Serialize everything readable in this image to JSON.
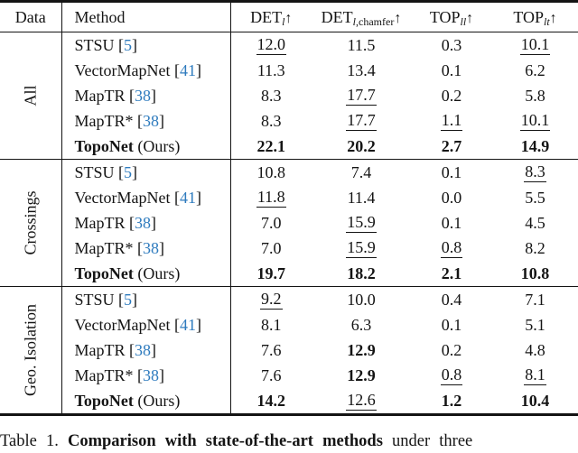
{
  "colors": {
    "text": "#141414",
    "citation_blue": "#2e7bbe",
    "background": "#ffffff"
  },
  "table": {
    "ref_open": "[",
    "ref_close": "]",
    "columns": [
      {
        "key": "data",
        "label": "Data"
      },
      {
        "key": "method",
        "label": "Method"
      },
      {
        "key": "det_l",
        "base": "DET",
        "sub_italic": "l",
        "sub_roman": "",
        "arrow": "↑"
      },
      {
        "key": "det_l_chamfer",
        "base": "DET",
        "sub_italic": "l",
        "sub_roman": ",chamfer",
        "arrow": "↑"
      },
      {
        "key": "top_ll",
        "base": "TOP",
        "sub_italic": "ll",
        "sub_roman": "",
        "arrow": "↑"
      },
      {
        "key": "top_lt",
        "base": "TOP",
        "sub_italic": "lt",
        "sub_roman": "",
        "arrow": "↑"
      }
    ],
    "groups": [
      {
        "label": "All",
        "rows": [
          {
            "method": "STSU",
            "ref": "5",
            "method_bold": false,
            "note": "",
            "cells": [
              {
                "v": "12.0",
                "s": "u"
              },
              {
                "v": "11.5",
                "s": ""
              },
              {
                "v": "0.3",
                "s": ""
              },
              {
                "v": "10.1",
                "s": "u"
              }
            ]
          },
          {
            "method": "VectorMapNet",
            "ref": "41",
            "method_bold": false,
            "note": "",
            "cells": [
              {
                "v": "11.3",
                "s": ""
              },
              {
                "v": "13.4",
                "s": ""
              },
              {
                "v": "0.1",
                "s": ""
              },
              {
                "v": "6.2",
                "s": ""
              }
            ]
          },
          {
            "method": "MapTR",
            "ref": "38",
            "method_bold": false,
            "note": "",
            "cells": [
              {
                "v": "8.3",
                "s": ""
              },
              {
                "v": "17.7",
                "s": "u"
              },
              {
                "v": "0.2",
                "s": ""
              },
              {
                "v": "5.8",
                "s": ""
              }
            ]
          },
          {
            "method": "MapTR*",
            "ref": "38",
            "method_bold": false,
            "note": "",
            "cells": [
              {
                "v": "8.3",
                "s": ""
              },
              {
                "v": "17.7",
                "s": "u"
              },
              {
                "v": "1.1",
                "s": "u"
              },
              {
                "v": "10.1",
                "s": "u"
              }
            ]
          },
          {
            "method": "TopoNet",
            "ref": "",
            "method_bold": true,
            "note": " (Ours)",
            "cells": [
              {
                "v": "22.1",
                "s": "b"
              },
              {
                "v": "20.2",
                "s": "b"
              },
              {
                "v": "2.7",
                "s": "b"
              },
              {
                "v": "14.9",
                "s": "b"
              }
            ]
          }
        ]
      },
      {
        "label": "Crossings",
        "rows": [
          {
            "method": "STSU",
            "ref": "5",
            "method_bold": false,
            "note": "",
            "cells": [
              {
                "v": "10.8",
                "s": ""
              },
              {
                "v": "7.4",
                "s": ""
              },
              {
                "v": "0.1",
                "s": ""
              },
              {
                "v": "8.3",
                "s": "u"
              }
            ]
          },
          {
            "method": "VectorMapNet",
            "ref": "41",
            "method_bold": false,
            "note": "",
            "cells": [
              {
                "v": "11.8",
                "s": "u"
              },
              {
                "v": "11.4",
                "s": ""
              },
              {
                "v": "0.0",
                "s": ""
              },
              {
                "v": "5.5",
                "s": ""
              }
            ]
          },
          {
            "method": "MapTR",
            "ref": "38",
            "method_bold": false,
            "note": "",
            "cells": [
              {
                "v": "7.0",
                "s": ""
              },
              {
                "v": "15.9",
                "s": "u"
              },
              {
                "v": "0.1",
                "s": ""
              },
              {
                "v": "4.5",
                "s": ""
              }
            ]
          },
          {
            "method": "MapTR*",
            "ref": "38",
            "method_bold": false,
            "note": "",
            "cells": [
              {
                "v": "7.0",
                "s": ""
              },
              {
                "v": "15.9",
                "s": "u"
              },
              {
                "v": "0.8",
                "s": "u"
              },
              {
                "v": "8.2",
                "s": ""
              }
            ]
          },
          {
            "method": "TopoNet",
            "ref": "",
            "method_bold": true,
            "note": " (Ours)",
            "cells": [
              {
                "v": "19.7",
                "s": "b"
              },
              {
                "v": "18.2",
                "s": "b"
              },
              {
                "v": "2.1",
                "s": "b"
              },
              {
                "v": "10.8",
                "s": "b"
              }
            ]
          }
        ]
      },
      {
        "label": "Geo. Isolation",
        "rows": [
          {
            "method": "STSU",
            "ref": "5",
            "method_bold": false,
            "note": "",
            "cells": [
              {
                "v": "9.2",
                "s": "u"
              },
              {
                "v": "10.0",
                "s": ""
              },
              {
                "v": "0.4",
                "s": ""
              },
              {
                "v": "7.1",
                "s": ""
              }
            ]
          },
          {
            "method": "VectorMapNet",
            "ref": "41",
            "method_bold": false,
            "note": "",
            "cells": [
              {
                "v": "8.1",
                "s": ""
              },
              {
                "v": "6.3",
                "s": ""
              },
              {
                "v": "0.1",
                "s": ""
              },
              {
                "v": "5.1",
                "s": ""
              }
            ]
          },
          {
            "method": "MapTR",
            "ref": "38",
            "method_bold": false,
            "note": "",
            "cells": [
              {
                "v": "7.6",
                "s": ""
              },
              {
                "v": "12.9",
                "s": "b"
              },
              {
                "v": "0.2",
                "s": ""
              },
              {
                "v": "4.8",
                "s": ""
              }
            ]
          },
          {
            "method": "MapTR*",
            "ref": "38",
            "method_bold": false,
            "note": "",
            "cells": [
              {
                "v": "7.6",
                "s": ""
              },
              {
                "v": "12.9",
                "s": "b"
              },
              {
                "v": "0.8",
                "s": "u"
              },
              {
                "v": "8.1",
                "s": "u"
              }
            ]
          },
          {
            "method": "TopoNet",
            "ref": "",
            "method_bold": true,
            "note": " (Ours)",
            "cells": [
              {
                "v": "14.2",
                "s": "b"
              },
              {
                "v": "12.6",
                "s": "u"
              },
              {
                "v": "1.2",
                "s": "b"
              },
              {
                "v": "10.4",
                "s": "b"
              }
            ]
          }
        ]
      }
    ]
  },
  "caption": {
    "prefix": "Table 1.",
    "bold": " Comparison with state-of-the-art methods",
    "suffix": " under three"
  }
}
